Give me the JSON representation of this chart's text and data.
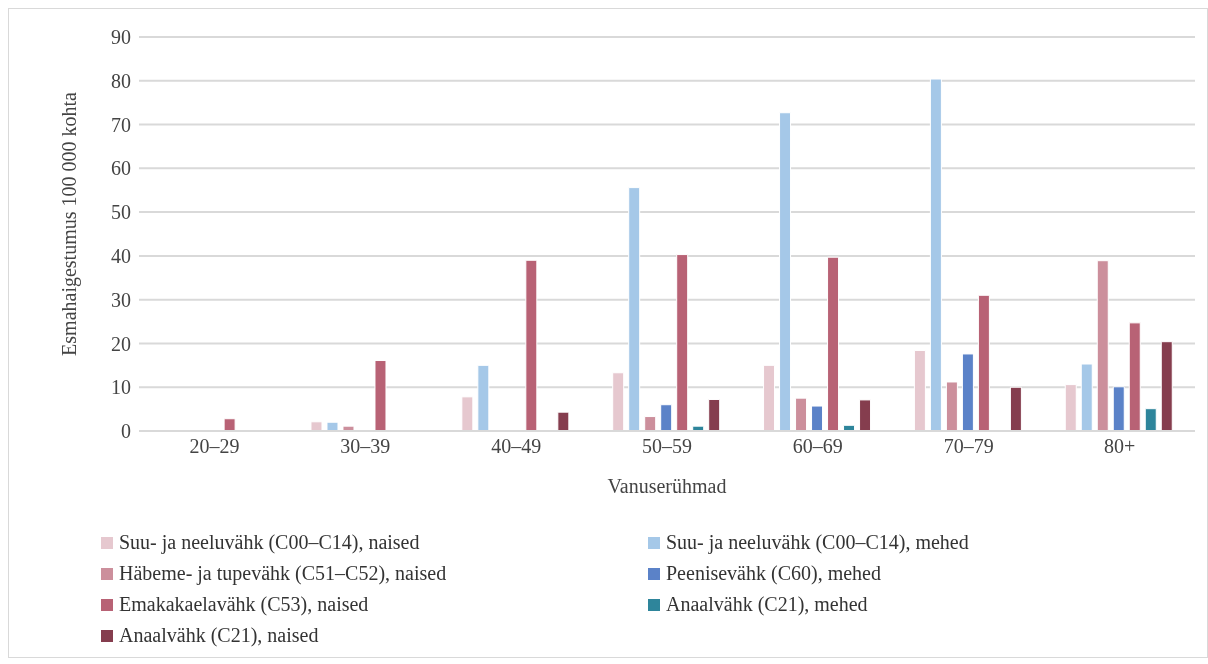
{
  "chart_data": {
    "type": "bar",
    "xlabel": "Vanuserühmad",
    "ylabel": "Esmahaigestumus 100 000 kohta",
    "categories": [
      "20–29",
      "30–39",
      "40–49",
      "50–59",
      "60–69",
      "70–79",
      "80+"
    ],
    "series": [
      {
        "name": "Suu- ja neeluvähk (C00–C14), naised",
        "color": "#e6c8cf",
        "values": [
          null,
          2.1,
          7.8,
          13.3,
          15.0,
          18.4,
          10.6
        ]
      },
      {
        "name": "Suu- ja neeluvähk (C00–C14), mehed",
        "color": "#a5c8e8",
        "values": [
          null,
          2.0,
          15.0,
          55.6,
          72.7,
          80.4,
          15.3
        ]
      },
      {
        "name": "Häbeme- ja tupevähk (C51–C52), naised",
        "color": "#cc8f9c",
        "values": [
          null,
          1.1,
          null,
          3.3,
          7.5,
          11.2,
          38.9
        ]
      },
      {
        "name": "Peenisevähk (C60), mehed",
        "color": "#5b82c8",
        "values": [
          null,
          null,
          null,
          6.0,
          5.7,
          17.6,
          10.1
        ]
      },
      {
        "name": "Emakakaelavähk (C53), naised",
        "color": "#b86275",
        "values": [
          2.8,
          16.1,
          39.0,
          40.3,
          39.7,
          31.0,
          24.7
        ]
      },
      {
        "name": "Anaalvähk (C21), mehed",
        "color": "#2e859b",
        "values": [
          null,
          null,
          null,
          1.1,
          1.3,
          null,
          5.1
        ]
      },
      {
        "name": "Anaalvähk (C21), naised",
        "color": "#853d4e",
        "values": [
          null,
          null,
          4.3,
          7.2,
          7.1,
          10.0,
          20.4
        ]
      }
    ],
    "ylim": [
      0,
      90
    ],
    "yticks": [
      0,
      10,
      20,
      30,
      40,
      50,
      60,
      70,
      80,
      90
    ],
    "grid": "y",
    "legend": "bottom"
  }
}
